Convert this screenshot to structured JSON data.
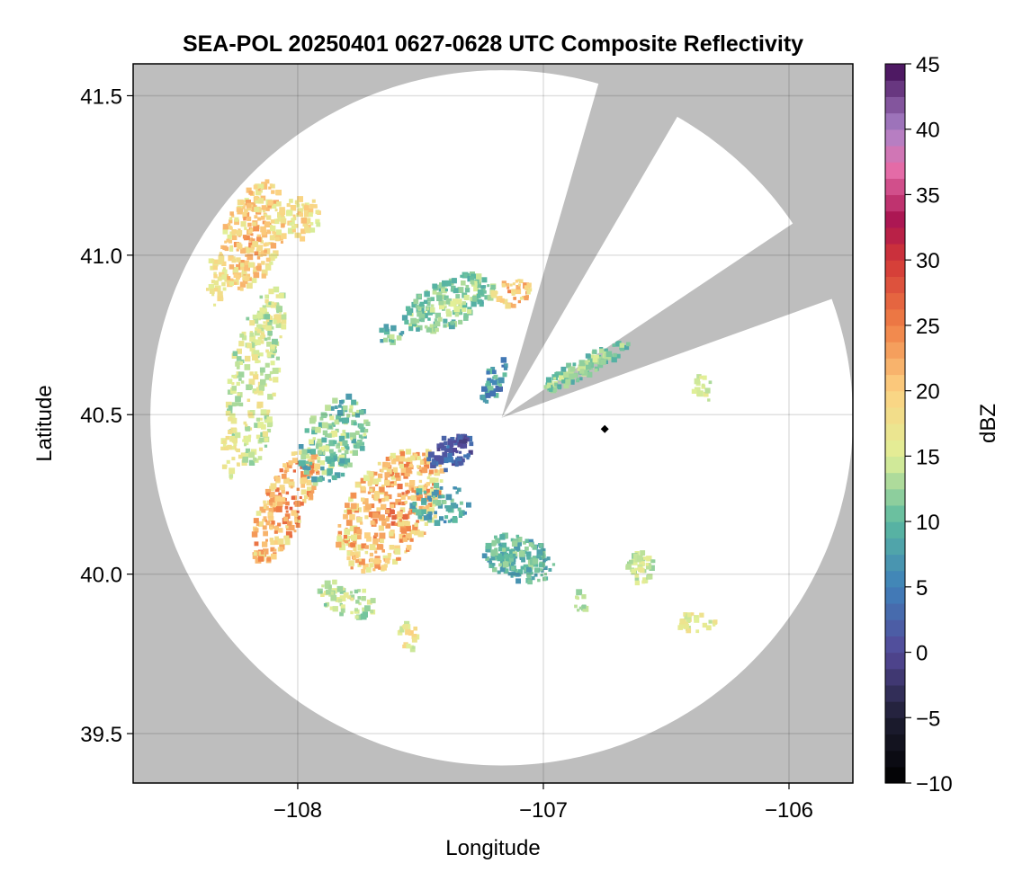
{
  "chart_data": {
    "type": "heatmap",
    "title": "SEA-POL 20250401 0627-0628 UTC Composite Reflectivity",
    "xlabel": "Longitude",
    "ylabel": "Latitude",
    "xlim": [
      -108.67,
      -105.74
    ],
    "ylim": [
      39.345,
      41.6
    ],
    "xticks": [
      -108,
      -107,
      -106
    ],
    "xtick_labels": [
      "−108",
      "−107",
      "−106"
    ],
    "yticks": [
      39.5,
      40.0,
      40.5,
      41.0,
      41.5
    ],
    "ytick_labels": [
      "39.5",
      "40.0",
      "40.5",
      "41.0",
      "41.5"
    ],
    "grid": true,
    "background_color": "#bebebe",
    "colorbar": {
      "label": "dBZ",
      "range": [
        -10,
        45
      ],
      "ticks": [
        -10,
        -5,
        0,
        5,
        10,
        15,
        20,
        25,
        30,
        35,
        40,
        45
      ],
      "tick_labels": [
        "−10",
        "−5",
        "0",
        "5",
        "10",
        "15",
        "20",
        "25",
        "30",
        "35",
        "40",
        "45"
      ],
      "colormap": "spectral_pink_purple"
    },
    "radar": {
      "site_lon": -107.17,
      "site_lat": 40.49,
      "range_deg_lon": 1.43,
      "range_deg_lat": 1.09,
      "blocked_sectors_deg_from_north": [
        [
          17,
          29
        ],
        [
          57,
          69
        ]
      ]
    },
    "site_marker": {
      "lon": -106.75,
      "lat": 40.455,
      "shape": "diamond"
    },
    "echo_regions": [
      {
        "lon": -108.18,
        "lat": 41.06,
        "rx": 0.12,
        "ry": 0.18,
        "rot": 20,
        "dbz": 21,
        "var": 4,
        "n": 260
      },
      {
        "lon": -107.98,
        "lat": 41.12,
        "rx": 0.07,
        "ry": 0.07,
        "rot": 0,
        "dbz": 19,
        "var": 3,
        "n": 60
      },
      {
        "lon": -108.12,
        "lat": 40.78,
        "rx": 0.07,
        "ry": 0.12,
        "rot": 10,
        "dbz": 16,
        "var": 3,
        "n": 80
      },
      {
        "lon": -108.33,
        "lat": 40.92,
        "rx": 0.04,
        "ry": 0.08,
        "rot": 0,
        "dbz": 18,
        "var": 2,
        "n": 30
      },
      {
        "lon": -108.18,
        "lat": 40.58,
        "rx": 0.1,
        "ry": 0.25,
        "rot": 5,
        "dbz": 16,
        "var": 3,
        "n": 170
      },
      {
        "lon": -108.27,
        "lat": 40.38,
        "rx": 0.04,
        "ry": 0.08,
        "rot": 0,
        "dbz": 17,
        "var": 2,
        "n": 30
      },
      {
        "lon": -108.05,
        "lat": 40.22,
        "rx": 0.09,
        "ry": 0.2,
        "rot": 25,
        "dbz": 24,
        "var": 5,
        "n": 190
      },
      {
        "lon": -107.85,
        "lat": 40.42,
        "rx": 0.12,
        "ry": 0.15,
        "rot": 30,
        "dbz": 13,
        "var": 4,
        "n": 170
      },
      {
        "lon": -107.62,
        "lat": 40.2,
        "rx": 0.17,
        "ry": 0.22,
        "rot": 35,
        "dbz": 23,
        "var": 5,
        "n": 420
      },
      {
        "lon": -107.38,
        "lat": 40.38,
        "rx": 0.1,
        "ry": 0.05,
        "rot": -30,
        "dbz": 3,
        "var": 3,
        "n": 70
      },
      {
        "lon": -107.42,
        "lat": 40.22,
        "rx": 0.12,
        "ry": 0.06,
        "rot": 0,
        "dbz": 10,
        "var": 3,
        "n": 60
      },
      {
        "lon": -107.8,
        "lat": 39.92,
        "rx": 0.12,
        "ry": 0.05,
        "rot": 20,
        "dbz": 15,
        "var": 3,
        "n": 60
      },
      {
        "lon": -107.55,
        "lat": 39.8,
        "rx": 0.04,
        "ry": 0.05,
        "rot": 0,
        "dbz": 18,
        "var": 3,
        "n": 20
      },
      {
        "lon": -107.1,
        "lat": 40.05,
        "rx": 0.15,
        "ry": 0.07,
        "rot": 20,
        "dbz": 11,
        "var": 3,
        "n": 170
      },
      {
        "lon": -106.85,
        "lat": 39.92,
        "rx": 0.04,
        "ry": 0.04,
        "rot": 0,
        "dbz": 14,
        "var": 2,
        "n": 10
      },
      {
        "lon": -106.6,
        "lat": 40.02,
        "rx": 0.06,
        "ry": 0.05,
        "rot": 0,
        "dbz": 15,
        "var": 2,
        "n": 40
      },
      {
        "lon": -106.38,
        "lat": 39.85,
        "rx": 0.08,
        "ry": 0.03,
        "rot": 0,
        "dbz": 17,
        "var": 3,
        "n": 30
      },
      {
        "lon": -107.38,
        "lat": 40.85,
        "rx": 0.2,
        "ry": 0.07,
        "rot": -25,
        "dbz": 13,
        "var": 3,
        "n": 180
      },
      {
        "lon": -107.13,
        "lat": 40.88,
        "rx": 0.08,
        "ry": 0.04,
        "rot": -20,
        "dbz": 22,
        "var": 4,
        "n": 40
      },
      {
        "lon": -107.2,
        "lat": 40.61,
        "rx": 0.04,
        "ry": 0.08,
        "rot": 20,
        "dbz": 9,
        "var": 4,
        "n": 40
      },
      {
        "lon": -106.83,
        "lat": 40.65,
        "rx": 0.2,
        "ry": 0.03,
        "rot": -28,
        "dbz": 13,
        "var": 3,
        "n": 110
      },
      {
        "lon": -107.62,
        "lat": 40.75,
        "rx": 0.05,
        "ry": 0.03,
        "rot": 0,
        "dbz": 12,
        "var": 3,
        "n": 15
      },
      {
        "lon": -106.35,
        "lat": 40.58,
        "rx": 0.04,
        "ry": 0.05,
        "rot": 0,
        "dbz": 15,
        "var": 2,
        "n": 15
      }
    ]
  }
}
